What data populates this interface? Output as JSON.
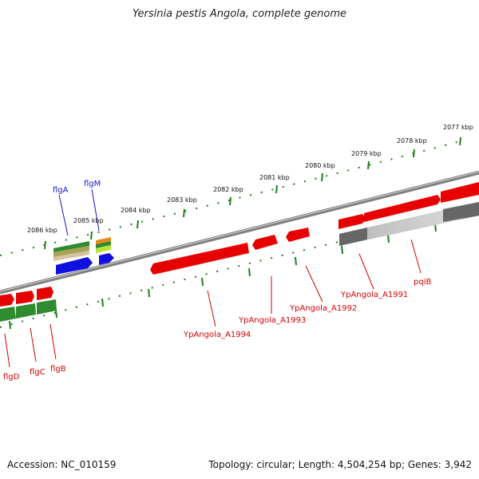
{
  "title": "Yersinia pestis Angola, complete genome",
  "footer": {
    "accession": "Accession: NC_010159",
    "summary": "Topology: circular; Length: 4,504,254 bp; Genes: 3,942"
  },
  "colors": {
    "backbone": "#808080",
    "tick_marks": "#1e7d1e",
    "gene_red": "#e60000",
    "gene_green": "#2e8b2e",
    "gene_blue": "#1010e0",
    "gene_gray": "#6e6e6e",
    "gene_orange": "#e88a1a",
    "label_red": "#d40000",
    "label_blue": "#1515c8"
  },
  "ticks": [
    "2077 kbp",
    "2078 kbp",
    "2079 kbp",
    "2080 kbp",
    "2081 kbp",
    "2082 kbp",
    "2083 kbp",
    "2084 kbp",
    "2085 kbp",
    "2086 kbp"
  ],
  "gene_labels": [
    "pqiB",
    "YpAngola_A1991",
    "YpAngola_A1992",
    "YpAngola_A1993",
    "YpAngola_A1994",
    "flgA",
    "flgM",
    "flgD",
    "flgC",
    "flgB"
  ]
}
